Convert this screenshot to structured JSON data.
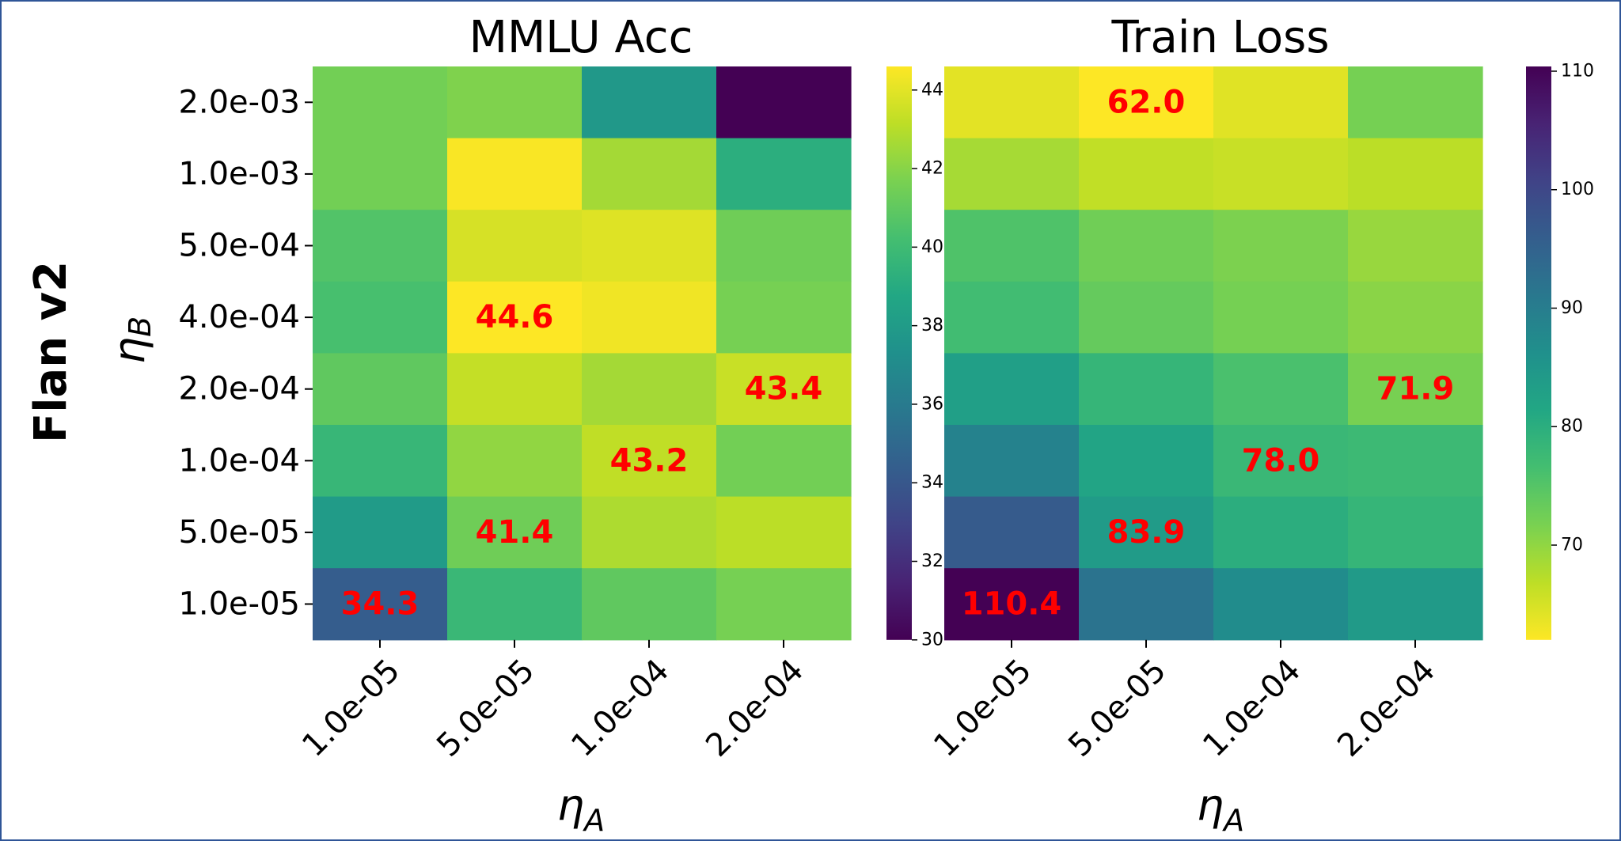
{
  "figure": {
    "row_label": "Flan v2",
    "y_axis_label_base": "η",
    "y_axis_label_sub": "B",
    "x_axis_label_base": "η",
    "x_axis_label_sub": "A"
  },
  "chart_data": [
    {
      "type": "heatmap",
      "title": "MMLU Acc",
      "xlabel": "ηA",
      "ylabel": "ηB",
      "x_ticks": [
        "1.0e-05",
        "5.0e-05",
        "1.0e-04",
        "2.0e-04"
      ],
      "y_ticks": [
        "2.0e-03",
        "1.0e-03",
        "5.0e-04",
        "4.0e-04",
        "2.0e-04",
        "1.0e-04",
        "5.0e-05",
        "1.0e-05"
      ],
      "values": [
        [
          41.5,
          41.8,
          37.8,
          30.0
        ],
        [
          41.5,
          44.5,
          42.6,
          39.2
        ],
        [
          40.6,
          43.7,
          43.9,
          41.4
        ],
        [
          40.3,
          44.6,
          44.3,
          41.6
        ],
        [
          41.0,
          43.3,
          42.6,
          43.4
        ],
        [
          39.7,
          42.2,
          43.2,
          41.5
        ],
        [
          38.0,
          41.4,
          42.8,
          43.1
        ],
        [
          34.3,
          39.8,
          41.0,
          41.6
        ]
      ],
      "annotations": [
        {
          "row": 3,
          "col": 1,
          "text": "44.6"
        },
        {
          "row": 4,
          "col": 3,
          "text": "43.4"
        },
        {
          "row": 5,
          "col": 2,
          "text": "43.2"
        },
        {
          "row": 6,
          "col": 1,
          "text": "41.4"
        },
        {
          "row": 7,
          "col": 0,
          "text": "34.3"
        }
      ],
      "colormap": "viridis",
      "reversed": false,
      "vmin": 30,
      "vmax": 44.6,
      "colorbar_ticks": [
        "30",
        "32",
        "34",
        "36",
        "38",
        "40",
        "42",
        "44"
      ]
    },
    {
      "type": "heatmap",
      "title": "Train Loss",
      "xlabel": "ηA",
      "ylabel": "",
      "x_ticks": [
        "1.0e-05",
        "5.0e-05",
        "1.0e-04",
        "2.0e-04"
      ],
      "y_ticks": [],
      "values": [
        [
          64.0,
          62.0,
          64.2,
          72.0
        ],
        [
          68.5,
          66.5,
          66.0,
          67.0
        ],
        [
          75.5,
          72.5,
          71.5,
          69.5
        ],
        [
          77.0,
          73.5,
          72.0,
          70.5
        ],
        [
          83.0,
          78.5,
          76.0,
          71.9
        ],
        [
          89.0,
          82.0,
          78.0,
          77.5
        ],
        [
          96.5,
          83.9,
          80.0,
          78.5
        ],
        [
          110.4,
          92.0,
          87.0,
          84.0
        ]
      ],
      "annotations": [
        {
          "row": 0,
          "col": 1,
          "text": "62.0"
        },
        {
          "row": 4,
          "col": 3,
          "text": "71.9"
        },
        {
          "row": 5,
          "col": 2,
          "text": "78.0"
        },
        {
          "row": 6,
          "col": 1,
          "text": "83.9"
        },
        {
          "row": 7,
          "col": 0,
          "text": "110.4"
        }
      ],
      "colormap": "viridis",
      "reversed": true,
      "vmin": 62,
      "vmax": 110.4,
      "colorbar_ticks": [
        "70",
        "80",
        "90",
        "100",
        "110"
      ]
    }
  ],
  "colors": {
    "annotation": "#ff0000",
    "text": "#000000",
    "frame": "#2f5597"
  }
}
